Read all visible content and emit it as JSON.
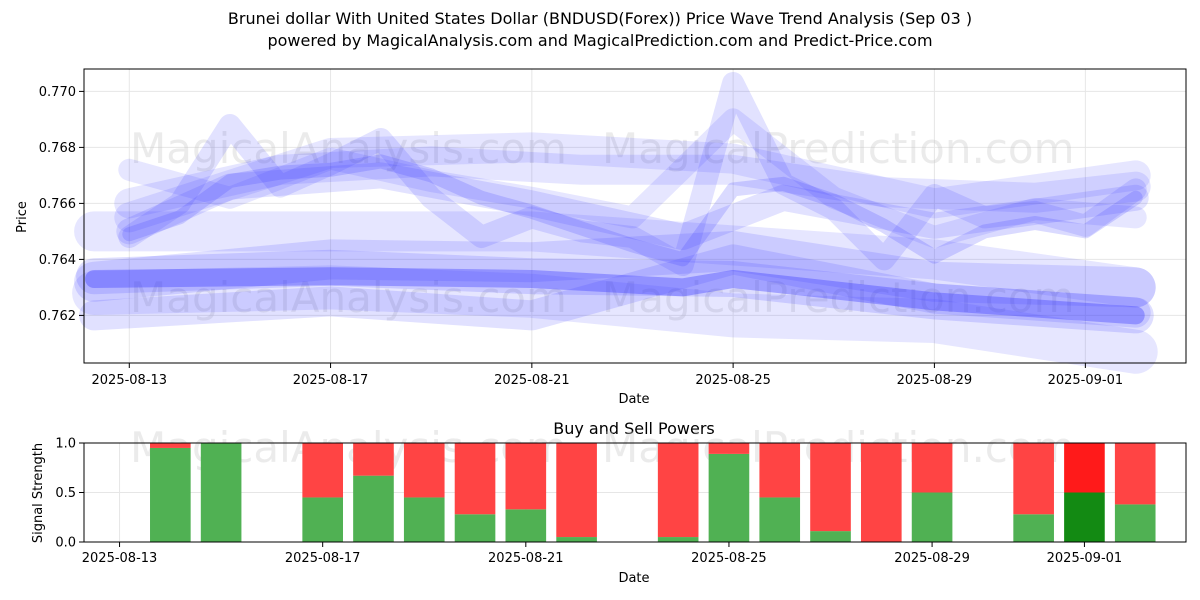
{
  "title_line1": "Brunei dollar With United States Dollar (BNDUSD(Forex)) Price Wave Trend Analysis (Sep 03 )",
  "title_line2": "powered by MagicalAnalysis.com and MagicalPrediction.com and Predict-Price.com",
  "watermarks": [
    "MagicalAnalysis.com",
    "MagicalPrediction.com"
  ],
  "colors": {
    "wave": "#3333ff",
    "buy": "#4caf50",
    "sell": "#ff4444",
    "buy_dark": "#138a13",
    "sell_bright": "#ff1a1a"
  },
  "chart_data": [
    {
      "type": "line",
      "title": "",
      "xlabel": "Date",
      "ylabel": "Price",
      "x_ticks": [
        "2025-08-13",
        "2025-08-17",
        "2025-08-21",
        "2025-08-25",
        "2025-08-29",
        "2025-09-01"
      ],
      "y_ticks": [
        "0.762",
        "0.764",
        "0.766",
        "0.768",
        "0.770"
      ],
      "ylim": [
        0.7603,
        0.7708
      ],
      "xlim_days_from_2025_08_13": [
        -0.9,
        21.0
      ],
      "grid": true,
      "series": [
        {
          "name": "wave-price",
          "width": 14,
          "opacity": 0.18,
          "x": [
            0,
            1,
            2,
            3,
            4,
            5,
            6,
            7,
            8,
            9,
            10,
            11,
            12,
            13,
            14,
            15,
            16,
            17,
            18,
            19,
            20
          ],
          "y": [
            0.7649,
            0.7655,
            0.7668,
            0.7671,
            0.7672,
            0.7675,
            0.767,
            0.7662,
            0.7657,
            0.7651,
            0.7645,
            0.764,
            0.7665,
            0.7667,
            0.7661,
            0.7652,
            0.7641,
            0.765,
            0.7653,
            0.765,
            0.7662
          ]
        },
        {
          "name": "wave-fast-a",
          "width": 22,
          "opacity": 0.14,
          "x": [
            0,
            1,
            2,
            3,
            4,
            5,
            6,
            7,
            8,
            9,
            10,
            11,
            12,
            13,
            14,
            15,
            16,
            17,
            18,
            19,
            20
          ],
          "y": [
            0.7648,
            0.766,
            0.7688,
            0.7666,
            0.7674,
            0.7683,
            0.7662,
            0.7648,
            0.7655,
            0.765,
            0.7648,
            0.7638,
            0.7703,
            0.7667,
            0.7658,
            0.764,
            0.7663,
            0.7655,
            0.7657,
            0.7652,
            0.7665
          ]
        },
        {
          "name": "wave-fast-b",
          "width": 22,
          "opacity": 0.12,
          "x": [
            0,
            2,
            4,
            6,
            8,
            10,
            12,
            14,
            16,
            18,
            20
          ],
          "y": [
            0.7672,
            0.7662,
            0.7676,
            0.7668,
            0.7662,
            0.7655,
            0.769,
            0.7662,
            0.7648,
            0.7658,
            0.7655
          ]
        },
        {
          "name": "wave-mid-a",
          "width": 30,
          "opacity": 0.13,
          "x": [
            0,
            3,
            6,
            9,
            12,
            15,
            18,
            20
          ],
          "y": [
            0.766,
            0.7672,
            0.7675,
            0.7672,
            0.7672,
            0.7664,
            0.7662,
            0.7666
          ]
        },
        {
          "name": "wave-mid-b",
          "width": 30,
          "opacity": 0.12,
          "x": [
            0,
            4,
            8,
            12,
            16,
            20
          ],
          "y": [
            0.7655,
            0.7678,
            0.768,
            0.7676,
            0.766,
            0.767
          ]
        },
        {
          "name": "wave-mid-c",
          "width": 26,
          "opacity": 0.14,
          "x": [
            0,
            2,
            5,
            8,
            11,
            13,
            16,
            20
          ],
          "y": [
            0.765,
            0.7666,
            0.767,
            0.766,
            0.7648,
            0.7662,
            0.7652,
            0.7662
          ]
        },
        {
          "name": "wave-slow-a",
          "width": 36,
          "opacity": 0.16,
          "x": [
            -0.7,
            4,
            8,
            12,
            16,
            20
          ],
          "y": [
            0.7634,
            0.7637,
            0.7634,
            0.7633,
            0.7625,
            0.762
          ]
        },
        {
          "name": "wave-slow-b",
          "width": 40,
          "opacity": 0.15,
          "x": [
            -0.7,
            4,
            8,
            12,
            16,
            20
          ],
          "y": [
            0.7632,
            0.764,
            0.7639,
            0.7643,
            0.7632,
            0.763
          ]
        },
        {
          "name": "wave-slow-c",
          "width": 44,
          "opacity": 0.12,
          "x": [
            -0.7,
            4,
            8,
            12,
            16,
            20
          ],
          "y": [
            0.7628,
            0.763,
            0.7627,
            0.762,
            0.7618,
            0.7607
          ]
        },
        {
          "name": "wave-slow-d",
          "width": 40,
          "opacity": 0.12,
          "x": [
            -0.7,
            4,
            8,
            12,
            16,
            20
          ],
          "y": [
            0.765,
            0.765,
            0.765,
            0.7645,
            0.764,
            0.763
          ]
        },
        {
          "name": "wave-slow-e",
          "width": 30,
          "opacity": 0.15,
          "x": [
            -0.7,
            4,
            8,
            12,
            16,
            20
          ],
          "y": [
            0.762,
            0.7625,
            0.762,
            0.764,
            0.7626,
            0.7621
          ]
        },
        {
          "name": "wave-core",
          "width": 18,
          "opacity": 0.35,
          "x": [
            -0.7,
            4,
            8,
            11,
            12,
            16,
            20
          ],
          "y": [
            0.7633,
            0.7634,
            0.7633,
            0.763,
            0.7633,
            0.7625,
            0.762
          ]
        }
      ]
    },
    {
      "type": "bar",
      "title": "Buy and Sell Powers",
      "xlabel": "Date",
      "ylabel": "Signal Strength",
      "x_ticks": [
        "2025-08-13",
        "2025-08-17",
        "2025-08-21",
        "2025-08-25",
        "2025-08-29",
        "2025-09-01"
      ],
      "y_ticks": [
        "0.0",
        "0.5",
        "1.0"
      ],
      "ylim": [
        0,
        1
      ],
      "grid": true,
      "series": [
        {
          "name": "Buy",
          "day": [
            1,
            2,
            4,
            5,
            6,
            7,
            8,
            9,
            11,
            12,
            13,
            14,
            15,
            16,
            18,
            19,
            20
          ],
          "values": [
            0.95,
            1.0,
            0.45,
            0.67,
            0.45,
            0.28,
            0.33,
            0.05,
            0.05,
            0.89,
            0.45,
            0.11,
            0.0,
            0.5,
            0.28,
            0.5,
            0.38
          ]
        },
        {
          "name": "Sell",
          "day": [
            1,
            2,
            4,
            5,
            6,
            7,
            8,
            9,
            11,
            12,
            13,
            14,
            15,
            16,
            18,
            19,
            20
          ],
          "values": [
            0.05,
            0.0,
            0.55,
            0.33,
            0.55,
            0.72,
            0.67,
            0.95,
            0.95,
            0.11,
            0.55,
            0.89,
            1.0,
            0.5,
            0.72,
            0.5,
            0.62
          ]
        }
      ],
      "highlight_day": 19
    }
  ]
}
